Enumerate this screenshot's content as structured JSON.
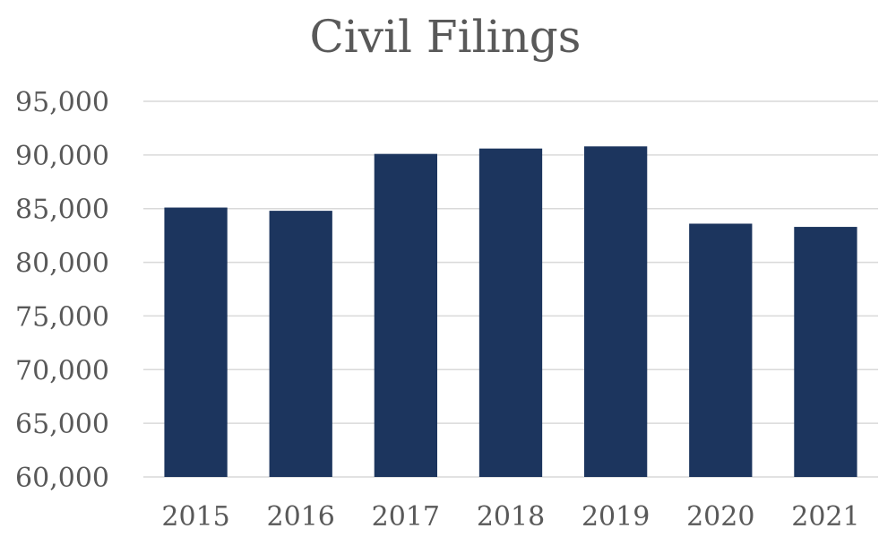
{
  "chart_data": {
    "type": "bar",
    "title": "Civil Filings",
    "xlabel": "",
    "ylabel": "",
    "categories": [
      "2015",
      "2016",
      "2017",
      "2018",
      "2019",
      "2020",
      "2021"
    ],
    "values": [
      85100,
      84800,
      90100,
      90600,
      90800,
      83600,
      83300
    ],
    "ylim": [
      60000,
      95000
    ],
    "y_ticks": [
      60000,
      65000,
      70000,
      75000,
      80000,
      85000,
      90000,
      95000
    ],
    "y_tick_labels": [
      "60,000",
      "65,000",
      "70,000",
      "75,000",
      "80,000",
      "85,000",
      "90,000",
      "95,000"
    ],
    "grid": true,
    "legend": "none",
    "bar_color": "#1c355e",
    "grid_color": "#d9d9d9",
    "text_color": "#595959"
  }
}
